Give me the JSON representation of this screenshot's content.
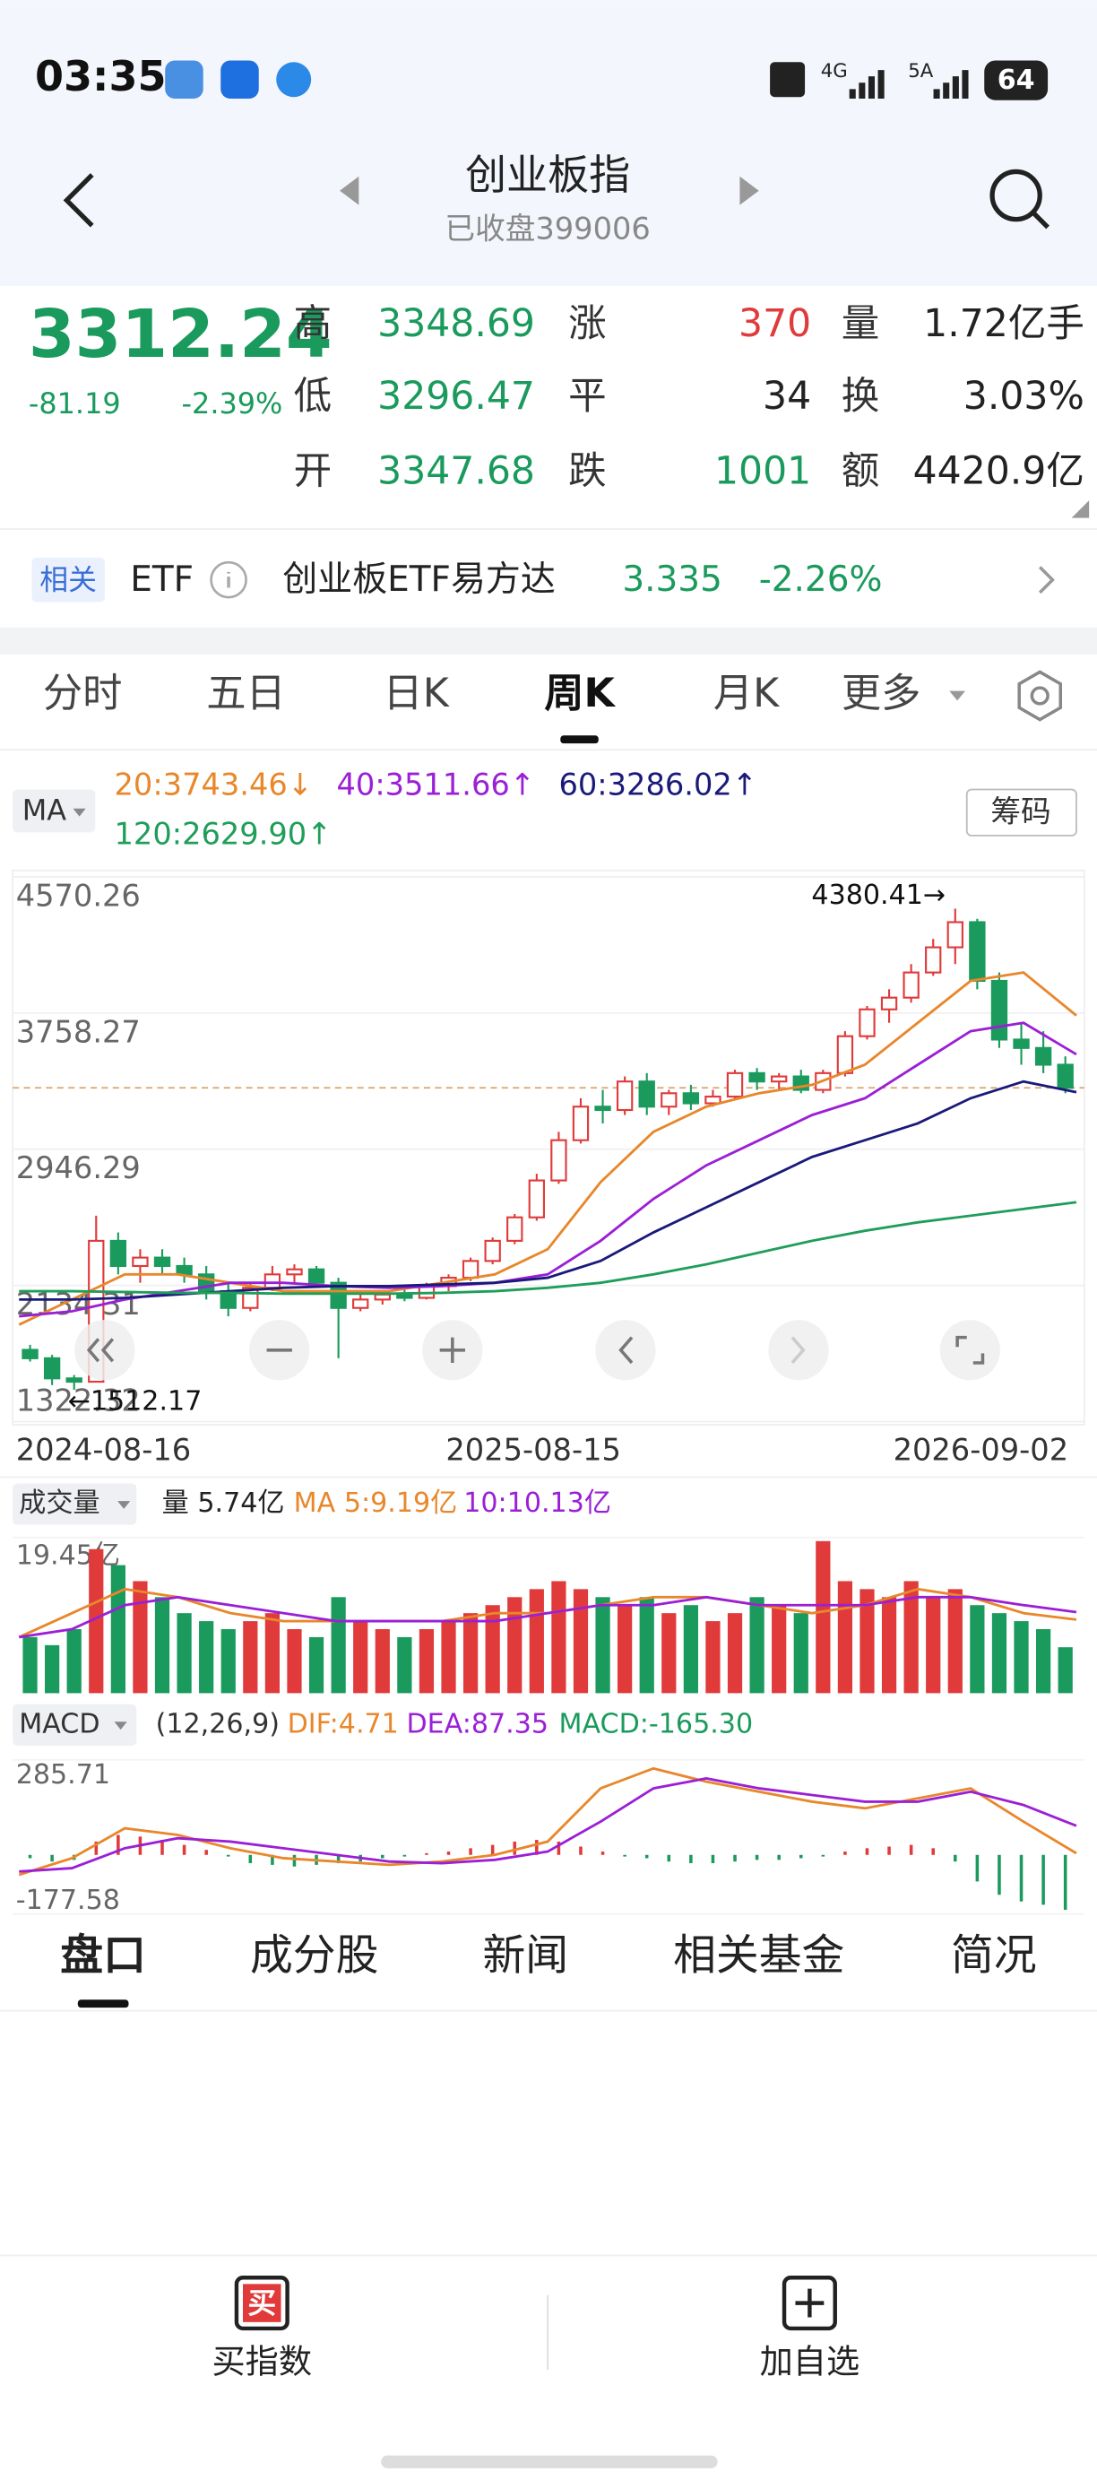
{
  "status_bar": {
    "time": "03:35",
    "network1": "4G",
    "network2": "5A",
    "battery": "64"
  },
  "header": {
    "title": "创业板指",
    "subtitle": "已收盘399006"
  },
  "quote": {
    "price": "3312.24",
    "change": "-81.19",
    "change_pct": "-2.39%",
    "color": "#1a9a5c",
    "stats": [
      [
        {
          "label": "高",
          "value": "3348.69",
          "color": "#1a9a5c"
        },
        {
          "label": "涨",
          "value": "370",
          "color": "#e03a3a"
        },
        {
          "label": "量",
          "value": "1.72亿手",
          "color": "#222"
        }
      ],
      [
        {
          "label": "低",
          "value": "3296.47",
          "color": "#1a9a5c"
        },
        {
          "label": "平",
          "value": "34",
          "color": "#222"
        },
        {
          "label": "换",
          "value": "3.03%",
          "color": "#222"
        }
      ],
      [
        {
          "label": "开",
          "value": "3347.68",
          "color": "#1a9a5c"
        },
        {
          "label": "跌",
          "value": "1001",
          "color": "#1a9a5c"
        },
        {
          "label": "额",
          "value": "4420.9亿",
          "color": "#222"
        }
      ]
    ]
  },
  "etf": {
    "tag": "相关",
    "type": "ETF",
    "name": "创业板ETF易方达",
    "price": "3.335",
    "change_pct": "-2.26%"
  },
  "period_tabs": [
    "分时",
    "五日",
    "日K",
    "周K",
    "月K",
    "更多"
  ],
  "active_tab": 3,
  "chart_data": {
    "type": "candlestick",
    "ma_label": "MA",
    "button": "筹码",
    "up_color": "#e03a3a",
    "down_color": "#1a9a5c",
    "ylim": [
      1322.32,
      4570.26
    ],
    "yticks": [
      4570.26,
      3758.27,
      2946.29,
      2134.31,
      1322.32
    ],
    "high_label": "4380.41→",
    "low_label": "←1512.17",
    "x_labels": [
      "2024-08-16",
      "2025-08-15",
      "2026-09-02"
    ],
    "candles": [
      [
        1750,
        1780,
        1680,
        1700
      ],
      [
        1700,
        1720,
        1540,
        1580
      ],
      [
        1580,
        1600,
        1512.17,
        1560
      ],
      [
        1560,
        2550,
        1560,
        2400
      ],
      [
        2400,
        2450,
        2200,
        2250
      ],
      [
        2250,
        2350,
        2150,
        2300
      ],
      [
        2300,
        2350,
        2200,
        2250
      ],
      [
        2250,
        2300,
        2150,
        2200
      ],
      [
        2200,
        2250,
        2050,
        2100
      ],
      [
        2100,
        2150,
        1950,
        2000
      ],
      [
        2000,
        2150,
        1980,
        2120
      ],
      [
        2120,
        2250,
        2100,
        2200
      ],
      [
        2200,
        2260,
        2150,
        2230
      ],
      [
        2230,
        2250,
        2120,
        2150
      ],
      [
        2150,
        2180,
        1700,
        2000
      ],
      [
        2000,
        2080,
        1980,
        2050
      ],
      [
        2050,
        2100,
        2020,
        2080
      ],
      [
        2080,
        2120,
        2040,
        2060
      ],
      [
        2060,
        2150,
        2050,
        2130
      ],
      [
        2130,
        2200,
        2100,
        2180
      ],
      [
        2180,
        2300,
        2160,
        2280
      ],
      [
        2280,
        2420,
        2260,
        2400
      ],
      [
        2400,
        2560,
        2380,
        2540
      ],
      [
        2540,
        2800,
        2520,
        2760
      ],
      [
        2760,
        3050,
        2740,
        3000
      ],
      [
        3000,
        3250,
        2980,
        3200
      ],
      [
        3200,
        3300,
        3100,
        3180
      ],
      [
        3180,
        3380,
        3150,
        3350
      ],
      [
        3350,
        3400,
        3150,
        3200
      ],
      [
        3200,
        3300,
        3150,
        3280
      ],
      [
        3280,
        3330,
        3180,
        3220
      ],
      [
        3220,
        3300,
        3200,
        3260
      ],
      [
        3260,
        3420,
        3240,
        3400
      ],
      [
        3400,
        3430,
        3300,
        3350
      ],
      [
        3350,
        3400,
        3300,
        3380
      ],
      [
        3380,
        3420,
        3280,
        3300
      ],
      [
        3300,
        3420,
        3280,
        3400
      ],
      [
        3400,
        3650,
        3380,
        3620
      ],
      [
        3620,
        3800,
        3600,
        3780
      ],
      [
        3780,
        3900,
        3700,
        3850
      ],
      [
        3850,
        4050,
        3820,
        4000
      ],
      [
        4000,
        4200,
        3980,
        4150
      ],
      [
        4150,
        4380.41,
        4050,
        4300
      ],
      [
        4300,
        4320,
        3900,
        3950
      ],
      [
        3950,
        4000,
        3550,
        3600
      ],
      [
        3600,
        3700,
        3450,
        3550
      ],
      [
        3550,
        3650,
        3400,
        3450
      ],
      [
        3450,
        3500,
        3280,
        3312.24
      ]
    ],
    "ma_series": [
      {
        "name": "20:3743.46↓",
        "color": "#e8872b",
        "values": [
          1900,
          2050,
          2200,
          2200,
          2150,
          2100,
          2100,
          2100,
          2150,
          2200,
          2350,
          2750,
          3050,
          3200,
          3280,
          3330,
          3450,
          3700,
          3950,
          4000,
          3743.46
        ]
      },
      {
        "name": "40:3511.66↑",
        "color": "#9b1fd6",
        "values": [
          1950,
          1980,
          2050,
          2100,
          2150,
          2150,
          2130,
          2120,
          2130,
          2150,
          2200,
          2400,
          2650,
          2850,
          3000,
          3150,
          3250,
          3450,
          3650,
          3700,
          3511.66
        ]
      },
      {
        "name": "60:3286.02↑",
        "color": "#1a1a7a",
        "values": [
          2050,
          2050,
          2060,
          2080,
          2100,
          2120,
          2130,
          2130,
          2140,
          2150,
          2180,
          2280,
          2450,
          2600,
          2750,
          2900,
          3000,
          3100,
          3250,
          3350,
          3286.02
        ]
      },
      {
        "name": "120:2629.90↑",
        "color": "#1f9e5a",
        "values": [
          2100,
          2100,
          2095,
          2090,
          2090,
          2085,
          2085,
          2085,
          2090,
          2100,
          2120,
          2150,
          2200,
          2260,
          2330,
          2400,
          2460,
          2510,
          2550,
          2590,
          2629.9
        ]
      }
    ]
  },
  "volume": {
    "label": "成交量",
    "current": "量 5.74亿",
    "ma5": "MA 5:9.19亿",
    "ma10": "10:10.13亿",
    "ylim": [
      0,
      19.45
    ],
    "yticks": [
      {
        "value": 19.45,
        "label": "19.45亿"
      }
    ],
    "values": [
      7,
      6,
      8,
      18,
      16,
      14,
      12,
      10,
      9,
      8,
      9,
      10,
      8,
      7,
      12,
      9,
      8,
      7,
      8,
      9,
      10,
      11,
      12,
      13,
      14,
      13,
      12,
      11,
      12,
      10,
      11,
      9,
      10,
      12,
      11,
      10,
      19,
      14,
      13,
      12,
      14,
      12,
      13,
      11,
      10,
      9,
      8,
      5.74
    ],
    "ma5_values": [
      7,
      10,
      13,
      12,
      10,
      9,
      9,
      9,
      9,
      10,
      10,
      11,
      12,
      12,
      11,
      10,
      11,
      13,
      12,
      10,
      9.19
    ],
    "ma10_values": [
      7,
      8,
      11,
      12,
      11,
      10,
      9,
      9,
      9,
      9,
      10,
      11,
      11,
      12,
      11,
      11,
      11,
      12,
      12,
      11,
      10.13
    ]
  },
  "macd": {
    "label": "MACD",
    "params": "(12,26,9)",
    "dif_label": "DIF:4.71",
    "dea_label": "DEA:87.35",
    "macd_label": "MACD:-165.30",
    "ylim": [
      -177.58,
      285.71
    ],
    "yticks": [
      285.71,
      -177.58
    ],
    "histogram": [
      -10,
      -20,
      -15,
      40,
      60,
      55,
      45,
      30,
      15,
      -5,
      -25,
      -30,
      -35,
      -30,
      -25,
      -20,
      -10,
      -5,
      5,
      10,
      20,
      30,
      40,
      45,
      40,
      25,
      10,
      -5,
      -10,
      -20,
      -25,
      -25,
      -20,
      -15,
      -15,
      -10,
      -5,
      10,
      20,
      25,
      30,
      20,
      -20,
      -80,
      -120,
      -140,
      -150,
      -165.3
    ],
    "dif": [
      -60,
      -10,
      80,
      60,
      20,
      -10,
      -20,
      -30,
      -20,
      0,
      40,
      200,
      260,
      220,
      190,
      160,
      140,
      170,
      200,
      100,
      4.71
    ],
    "dea": [
      -50,
      -40,
      20,
      50,
      40,
      20,
      0,
      -20,
      -25,
      -15,
      10,
      100,
      200,
      230,
      200,
      180,
      160,
      160,
      190,
      150,
      87.35
    ]
  },
  "bottom_tabs": [
    "盘口",
    "成分股",
    "新闻",
    "相关基金",
    "简况"
  ],
  "actions": [
    {
      "icon": "买",
      "label": "买指数"
    },
    {
      "label": "加自选"
    }
  ]
}
